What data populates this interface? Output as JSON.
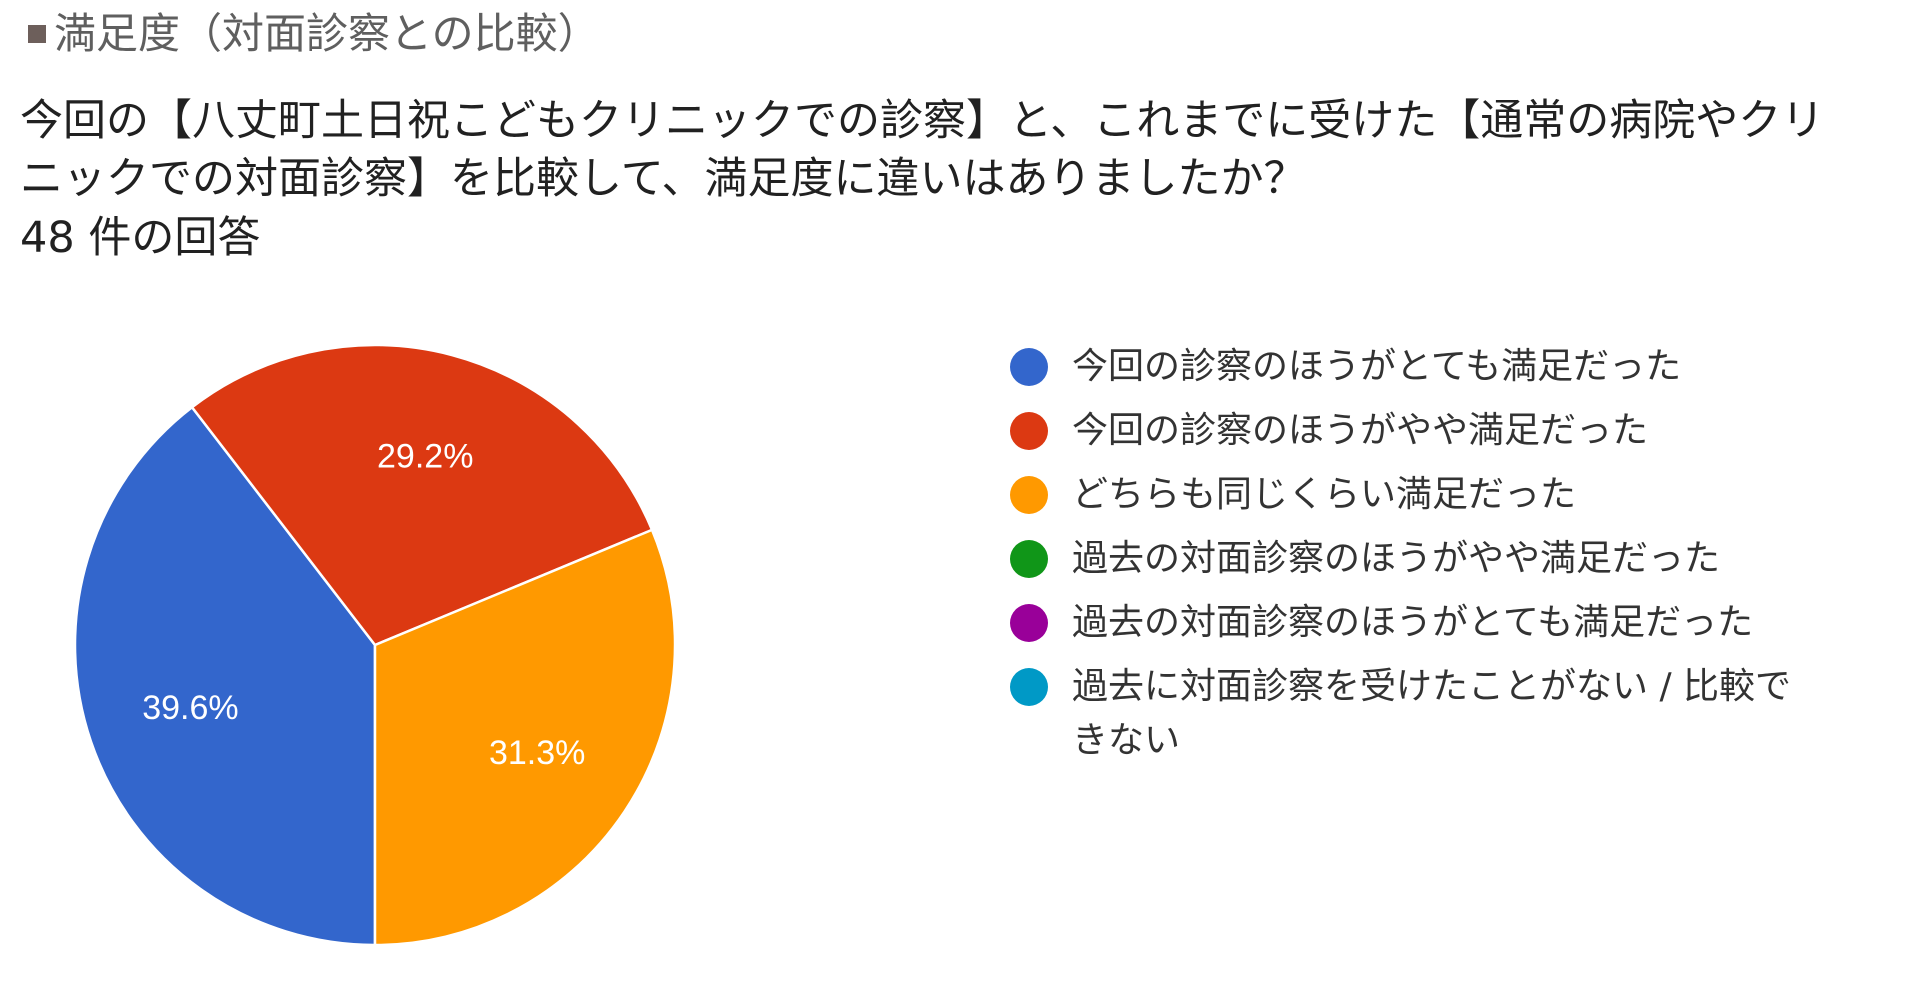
{
  "header": {
    "section_title": "満足度（対面診察との比較）",
    "question_line1": "今回の【八丈町土日祝こどもクリニックでの診察】と、これまでに受けた【通常の病院やクリ",
    "question_line2": "ニックでの対面診察】を比較して、満足度に違いはありましたか？",
    "response_count": "48 件の回答"
  },
  "colors": {
    "heading_square": "#6d5f5b",
    "slice_stroke": "#ffffff"
  },
  "chart_data": {
    "type": "pie",
    "total_responses": 48,
    "start_angle_deg": 90,
    "direction": "clockwise",
    "slices": [
      {
        "label": "今回の診察のほうがとても満足だった",
        "value": 39.6,
        "pct_label": "39.6%",
        "color": "#3366cc"
      },
      {
        "label": "今回の診察のほうがやや満足だった",
        "value": 29.2,
        "pct_label": "29.2%",
        "color": "#dc3912"
      },
      {
        "label": "どちらも同じくらい満足だった",
        "value": 31.3,
        "pct_label": "31.3%",
        "color": "#ff9900"
      },
      {
        "label": "過去の対面診察のほうがやや満足だった",
        "value": 0,
        "pct_label": "",
        "color": "#109618"
      },
      {
        "label": "過去の対面診察のほうがとても満足だった",
        "value": 0,
        "pct_label": "",
        "color": "#990099"
      },
      {
        "label": "過去に対面診察を受けたことがない / 比較できない",
        "value": 0,
        "pct_label": "",
        "color": "#0099c6"
      }
    ],
    "legend_position": "right"
  }
}
